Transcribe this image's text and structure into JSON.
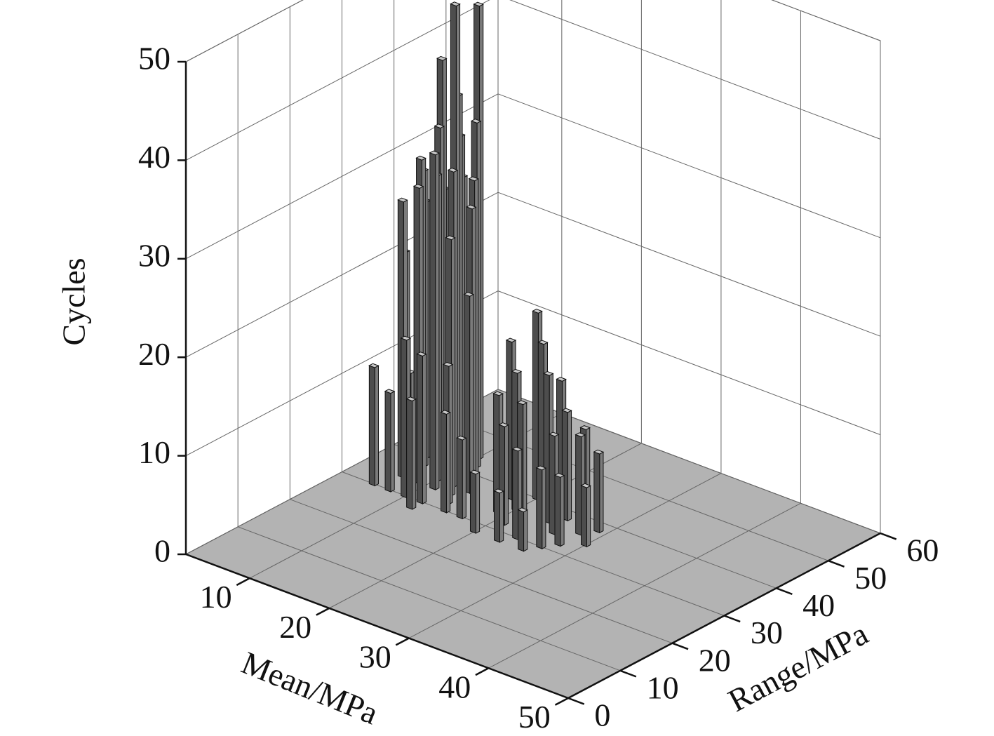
{
  "chart_data": {
    "type": "bar3d",
    "x_label": "Mean/MPa",
    "y_label": "Range/MPa",
    "z_label": "Cycles",
    "x": [
      4,
      5,
      5,
      6,
      6,
      7,
      7,
      7,
      8,
      8,
      8,
      9,
      9,
      9,
      10,
      10,
      10,
      11,
      11,
      11,
      12,
      12,
      13,
      13,
      14,
      14,
      6,
      8,
      10,
      12,
      12,
      15,
      18,
      19,
      20,
      20,
      21,
      22,
      22,
      23,
      24,
      24,
      25,
      26,
      26,
      27,
      28,
      28,
      29,
      30,
      17,
      20,
      23,
      26
    ],
    "y": [
      40,
      38,
      42,
      36,
      40,
      34,
      38,
      42,
      36,
      40,
      44,
      34,
      38,
      42,
      36,
      40,
      44,
      34,
      38,
      42,
      36,
      40,
      34,
      38,
      36,
      32,
      30,
      30,
      30,
      30,
      28,
      30,
      38,
      34,
      40,
      36,
      32,
      38,
      34,
      40,
      36,
      30,
      38,
      34,
      40,
      30,
      36,
      32,
      38,
      34,
      30,
      28,
      28,
      28
    ],
    "values": [
      8,
      6,
      17,
      22,
      26,
      28,
      30,
      27,
      32,
      41,
      28,
      30,
      35,
      33,
      31,
      38,
      46,
      34,
      48,
      35,
      32,
      30,
      26,
      28,
      20,
      14,
      12,
      10,
      16,
      15,
      11,
      10,
      16,
      12,
      19,
      14,
      10,
      17,
      12,
      13,
      15,
      9,
      11,
      10,
      9,
      8,
      10,
      7,
      8,
      6,
      8,
      6,
      5,
      4
    ],
    "color": "#4d4d4d",
    "xlim": [
      2,
      50
    ],
    "ylim": [
      0,
      60
    ],
    "zlim": [
      0,
      50
    ],
    "xticks": [
      10,
      20,
      30,
      40,
      50
    ],
    "yticks": [
      0,
      10,
      20,
      30,
      40,
      50,
      60
    ],
    "zticks": [
      0,
      10,
      20,
      30,
      40,
      50
    ],
    "grid": true
  }
}
